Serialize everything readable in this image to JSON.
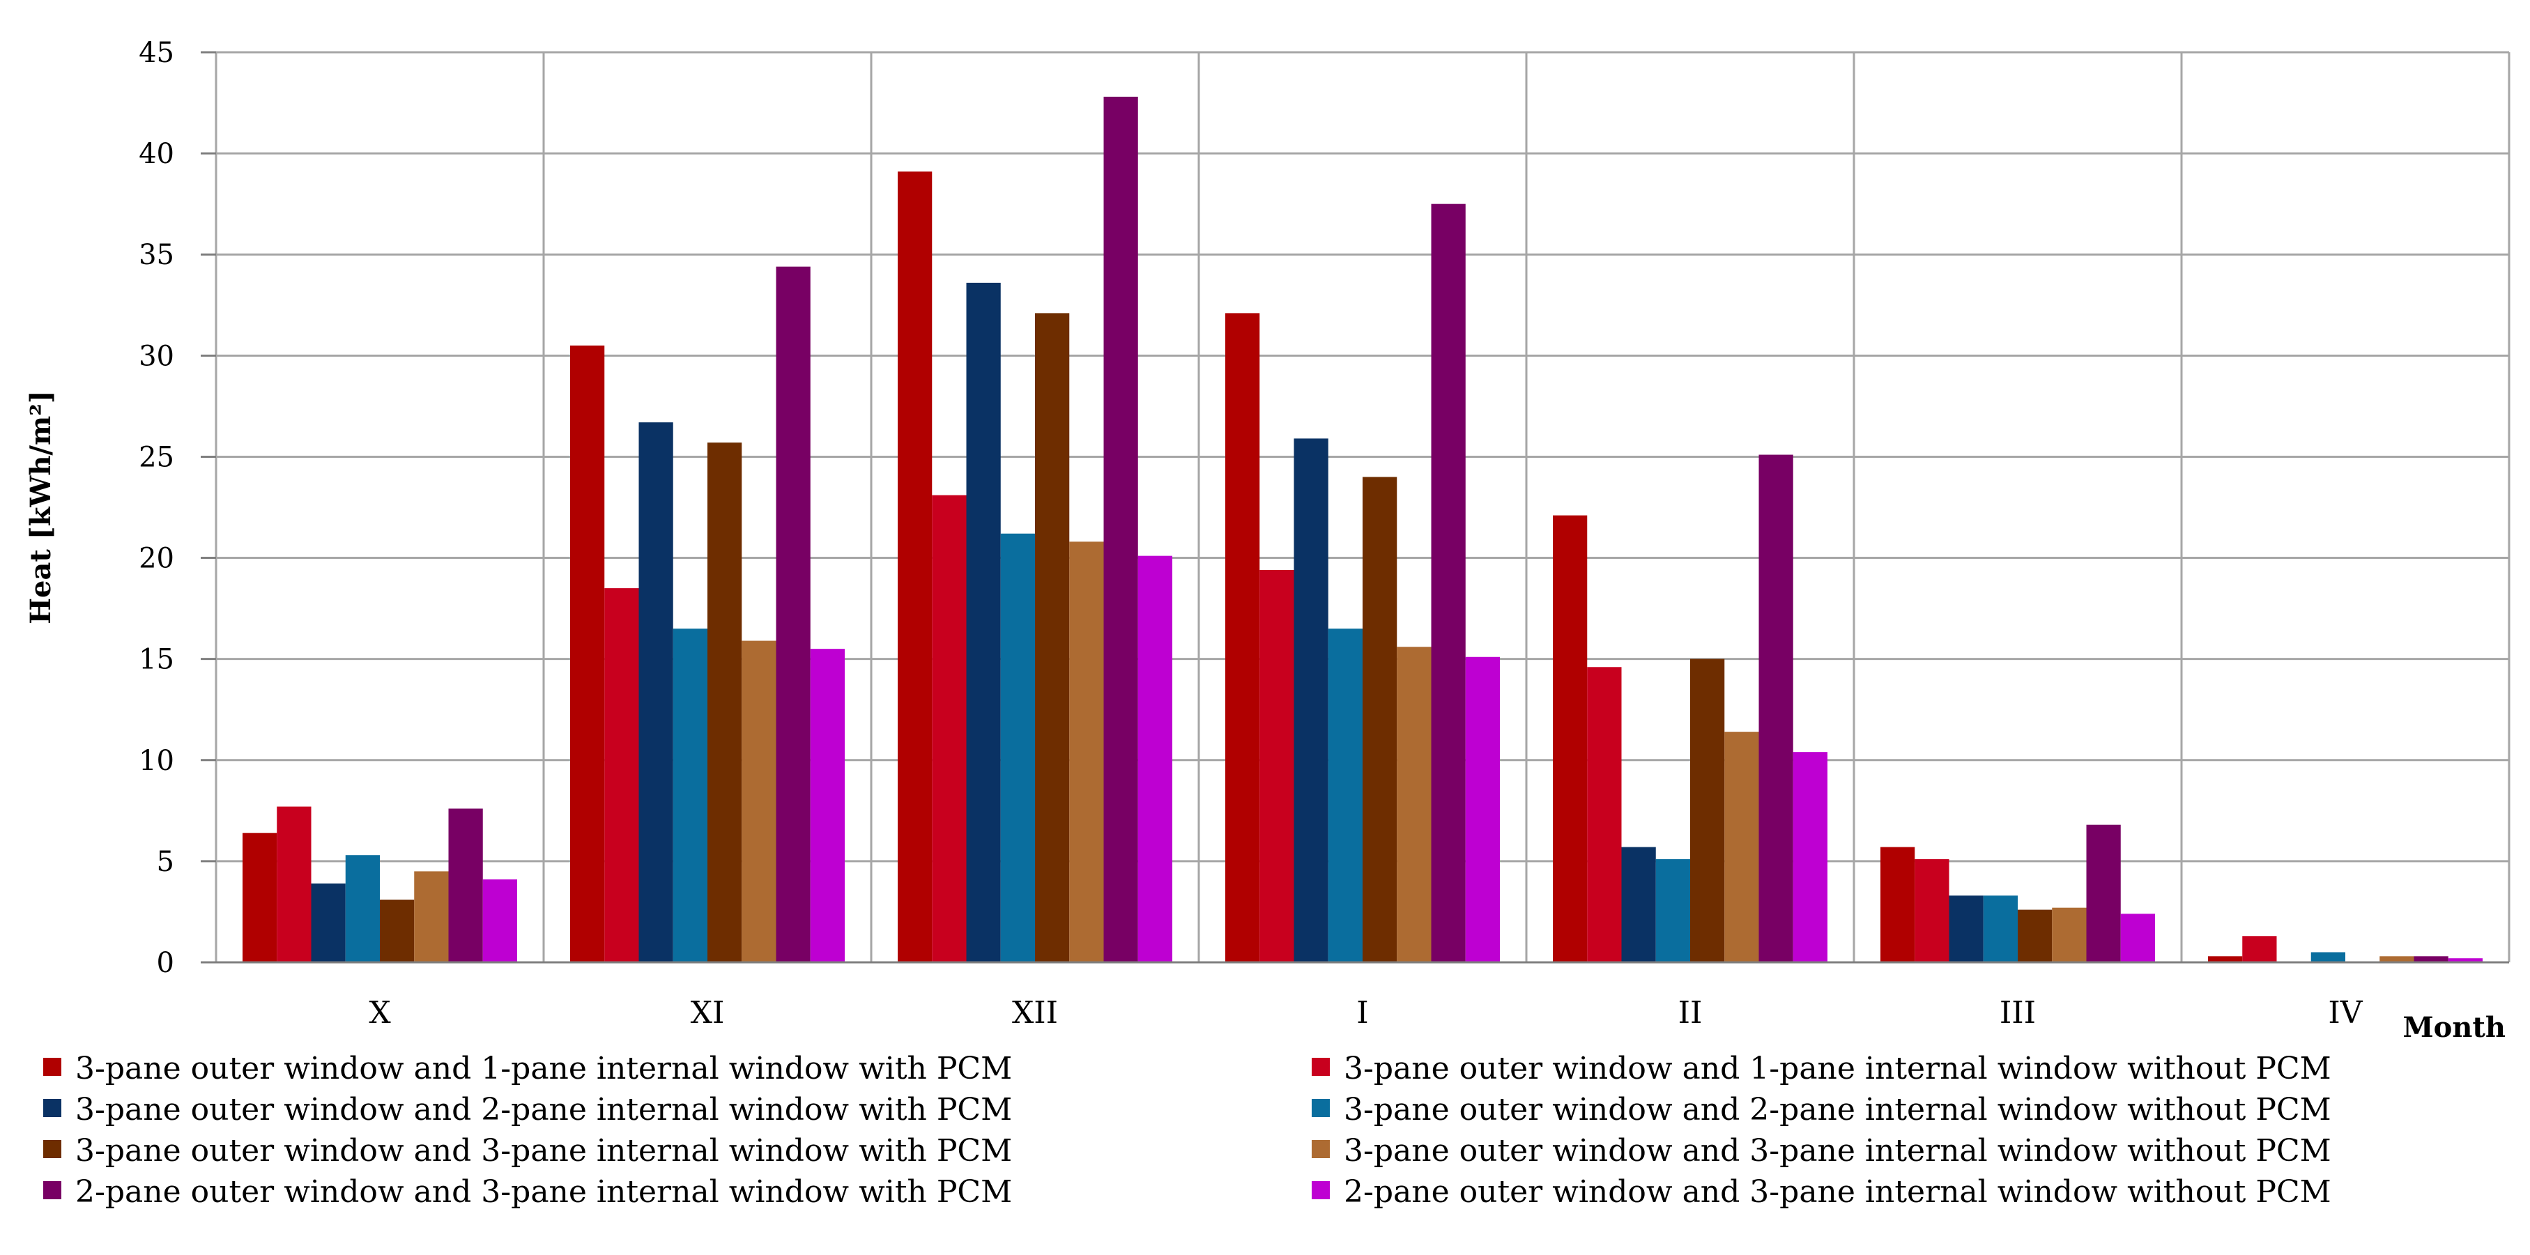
{
  "chart_data": {
    "type": "bar",
    "title": "",
    "xlabel": "Month",
    "ylabel": "Heat  [kWh/m²]",
    "ylim": [
      0,
      45
    ],
    "yticks": [
      0,
      5,
      10,
      15,
      20,
      25,
      30,
      35,
      40,
      45
    ],
    "grid": true,
    "legend_position": "bottom",
    "categories": [
      "X",
      "XI",
      "XII",
      "I",
      "II",
      "III",
      "IV"
    ],
    "series": [
      {
        "name": "3-pane outer window and 1-pane internal window with PCM",
        "color": "#b00000",
        "values": [
          6.4,
          30.5,
          39.1,
          32.1,
          22.1,
          5.7,
          0.3
        ]
      },
      {
        "name": "3-pane outer window and 1-pane internal window without PCM",
        "color": "#c8001e",
        "values": [
          7.7,
          18.5,
          23.1,
          19.4,
          14.6,
          5.1,
          1.3
        ]
      },
      {
        "name": "3-pane outer window and 2-pane internal window with PCM",
        "color": "#0a3264",
        "values": [
          3.9,
          26.7,
          33.6,
          25.9,
          5.7,
          3.3,
          0.0
        ]
      },
      {
        "name": "3-pane outer window and 2-pane internal window without PCM",
        "color": "#0a6e9e",
        "values": [
          5.3,
          16.5,
          21.2,
          16.5,
          5.1,
          3.3,
          0.5
        ]
      },
      {
        "name": "3-pane outer window and 3-pane internal window with PCM",
        "color": "#6e2d00",
        "values": [
          3.1,
          25.7,
          32.1,
          24.0,
          15.0,
          2.6,
          0.0
        ]
      },
      {
        "name": "3-pane outer window and 3-pane internal window without PCM",
        "color": "#ad6b32",
        "values": [
          4.5,
          15.9,
          20.8,
          15.6,
          11.4,
          2.7,
          0.3
        ]
      },
      {
        "name": "2-pane outer window and 3-pane internal window with PCM",
        "color": "#780064",
        "values": [
          7.6,
          34.4,
          42.8,
          37.5,
          25.1,
          6.8,
          0.3
        ]
      },
      {
        "name": "2-pane outer window and 3-pane internal window without PCM",
        "color": "#be00d2",
        "values": [
          4.1,
          15.5,
          20.1,
          15.1,
          10.4,
          2.4,
          0.2
        ]
      }
    ]
  }
}
